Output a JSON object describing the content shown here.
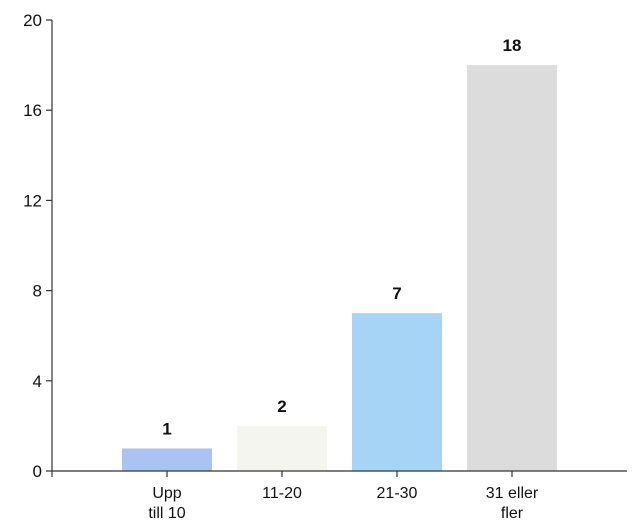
{
  "chart_data": {
    "type": "bar",
    "title": "",
    "xlabel": "",
    "ylabel": "",
    "categories": [
      [
        "Upp",
        "till 10"
      ],
      [
        "11-20"
      ],
      [
        "21-30"
      ],
      [
        "31 eller",
        "fler"
      ]
    ],
    "values": [
      1,
      2,
      7,
      18
    ],
    "data_labels": [
      "1",
      "2",
      "7",
      "18"
    ],
    "ylim": [
      0,
      20
    ],
    "yticks": [
      0,
      4,
      8,
      12,
      16,
      20
    ],
    "ytick_labels": [
      "0",
      "4",
      "8",
      "12",
      "16",
      "20"
    ],
    "grid": false,
    "legend": "none",
    "bar_colors": [
      "#a9c3f2",
      "#f5f5f0",
      "#a6d4f7",
      "#dcdcdc"
    ],
    "axis_color": "#333333"
  }
}
